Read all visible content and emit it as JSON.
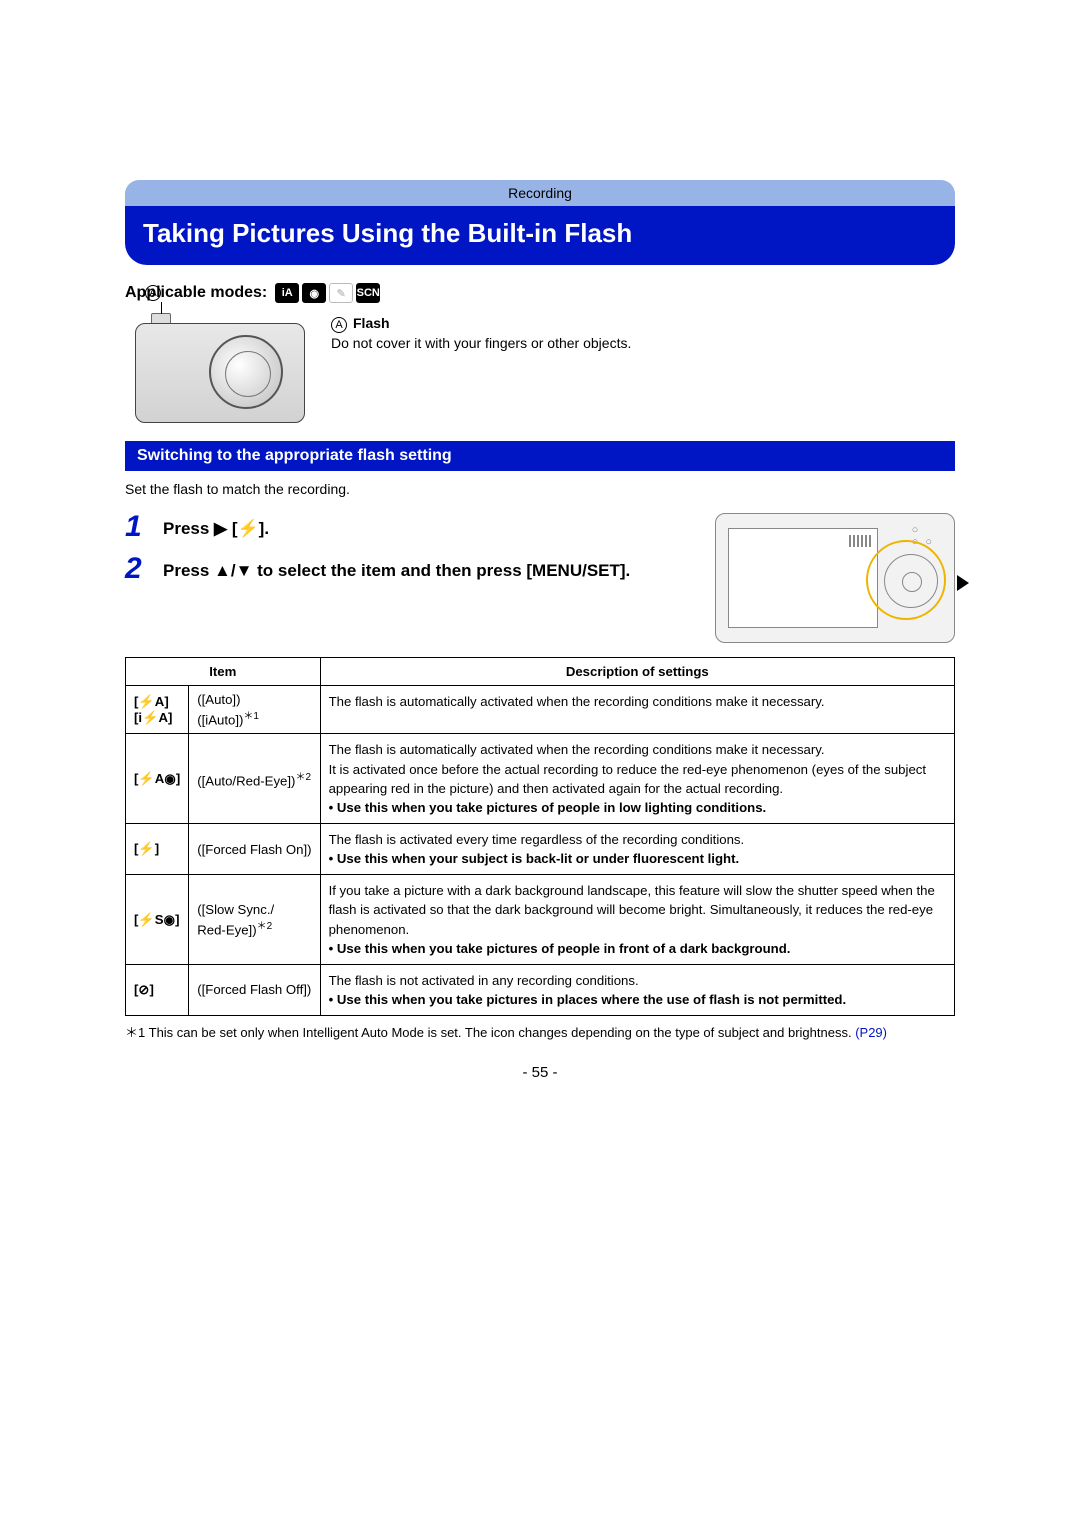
{
  "header": {
    "breadcrumb": "Recording"
  },
  "title": "Taking Pictures Using the Built-in Flash",
  "applicable": {
    "label": "Applicable modes:",
    "modes": [
      {
        "glyph": "iA",
        "style": "solid"
      },
      {
        "glyph": "◉",
        "style": "solid"
      },
      {
        "glyph": "✎",
        "style": "faded"
      },
      {
        "glyph": "SCN",
        "style": "solid"
      }
    ]
  },
  "flash_illustration": {
    "marker": "A",
    "label": "Flash",
    "text": "Do not cover it with your fingers or other objects."
  },
  "section": {
    "title": "Switching to the appropriate flash setting"
  },
  "intro": "Set the flash to match the recording.",
  "steps": [
    {
      "n": "1",
      "text": "Press ▶ [⚡]."
    },
    {
      "n": "2",
      "text": "Press ▲/▼ to select the item and then press [MENU/SET]."
    }
  ],
  "table": {
    "headers": {
      "item": "Item",
      "desc": "Description of settings"
    },
    "rows": [
      {
        "icons": [
          {
            "sym": "[⚡A]",
            "name": "([Auto])",
            "sup": ""
          },
          {
            "sym": "[i⚡A]",
            "name": "([iAuto])",
            "sup": "＊1"
          }
        ],
        "desc_plain": "The flash is automatically activated when the recording conditions make it necessary.",
        "desc_bold": ""
      },
      {
        "icons": [
          {
            "sym": "[⚡A◉]",
            "name": "([Auto/Red-Eye])",
            "sup": "＊2"
          }
        ],
        "desc_plain": "The flash is automatically activated when the recording conditions make it necessary.\nIt is activated once before the actual recording to reduce the red-eye phenomenon (eyes of the subject appearing red in the picture) and then activated again for the actual recording.",
        "desc_bold": "• Use this when you take pictures of people in low lighting conditions."
      },
      {
        "icons": [
          {
            "sym": "[⚡]",
            "name": "([Forced Flash On])",
            "sup": ""
          }
        ],
        "desc_plain": "The flash is activated every time regardless of the recording conditions.",
        "desc_bold": "• Use this when your subject is back-lit or under fluorescent light."
      },
      {
        "icons": [
          {
            "sym": "[⚡S◉]",
            "name": "([Slow Sync./\nRed-Eye])",
            "sup": "＊2"
          }
        ],
        "desc_plain": "If you take a picture with a dark background landscape, this feature will slow the shutter speed when the flash is activated so that the dark background will become bright. Simultaneously, it reduces the red-eye phenomenon.",
        "desc_bold": "• Use this when you take pictures of people in front of a dark background."
      },
      {
        "icons": [
          {
            "sym": "[⊘]",
            "name": "([Forced Flash Off])",
            "sup": ""
          }
        ],
        "desc_plain": "The flash is not activated in any recording conditions.",
        "desc_bold": "• Use this when you take pictures in places where the use of flash is not permitted."
      }
    ]
  },
  "footnote": {
    "marker": "＊1",
    "text": "This can be set only when Intelligent Auto Mode is set. The icon changes depending on the type of subject and brightness.",
    "ref": "(P29)"
  },
  "page_number": "- 55 -",
  "palette": {
    "header_blue": "#0016c4",
    "strip_blue": "#98b3e6",
    "highlight": "#eeb400"
  }
}
